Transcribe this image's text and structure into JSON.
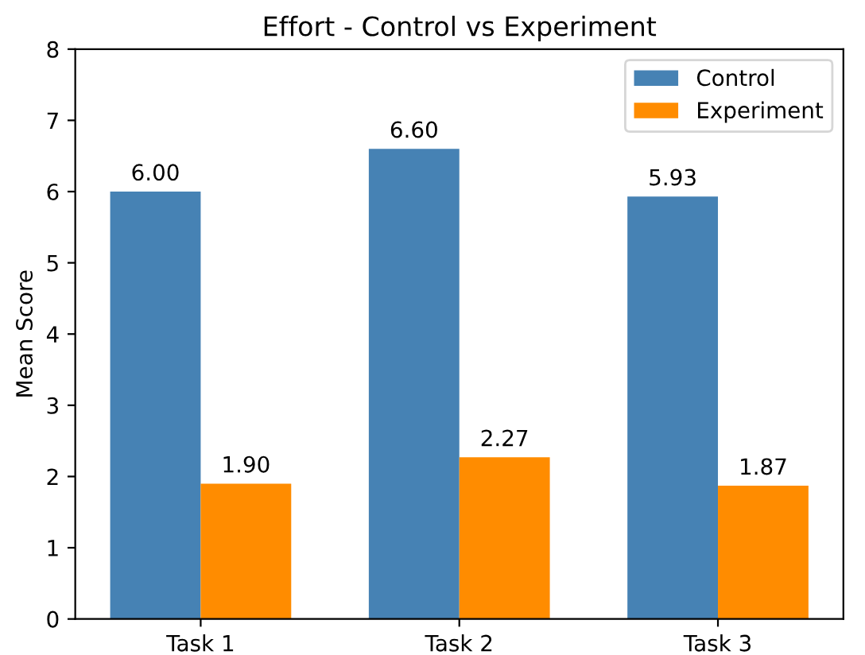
{
  "chart_data": {
    "type": "bar",
    "title": "Effort - Control vs Experiment",
    "ylabel": "Mean Score",
    "categories": [
      "Task 1",
      "Task 2",
      "Task 3"
    ],
    "series": [
      {
        "name": "Control",
        "color": "#4682b4",
        "values": [
          6.0,
          6.6,
          5.93
        ],
        "value_labels": [
          "6.00",
          "6.60",
          "5.93"
        ]
      },
      {
        "name": "Experiment",
        "color": "#ff8c00",
        "values": [
          1.9,
          2.27,
          1.87
        ],
        "value_labels": [
          "1.90",
          "2.27",
          "1.87"
        ]
      }
    ],
    "ylim": [
      0,
      8
    ],
    "yticks": [
      0,
      1,
      2,
      3,
      4,
      5,
      6,
      7,
      8
    ],
    "grid": false,
    "legend": "top right"
  }
}
